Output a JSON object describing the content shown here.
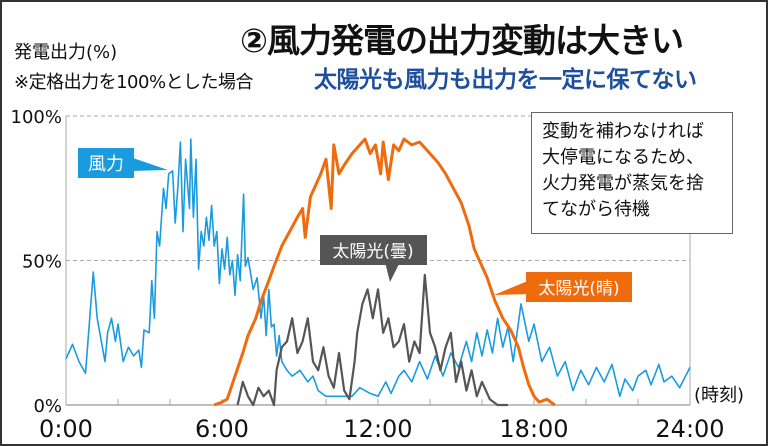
{
  "title": "②風力発電の出力変動は大きい",
  "subtitle": "太陽光も風力も出力を一定に保てない",
  "y_axis_label": "発電出力(%)",
  "y_axis_note": "※定格出力を100%とした場合",
  "note_lines": [
    "変動を補わなければ",
    "大停電になるため、",
    "火力発電が蒸気を捨",
    "てながら待機"
  ],
  "colors": {
    "wind": "#1a9be0",
    "solar_clear": "#ee6c0e",
    "solar_cloudy": "#555555",
    "subtitle": "#1d4f9c"
  },
  "chart_data": {
    "type": "line",
    "title": "②風力発電の出力変動は大きい",
    "xlabel": "(時刻)",
    "ylabel": "発電出力(%)",
    "xlim": [
      0,
      24
    ],
    "ylim": [
      0,
      100
    ],
    "x_ticks": [
      0,
      6,
      12,
      18,
      24
    ],
    "x_tick_labels": [
      "0:00",
      "6:00",
      "12:00",
      "18:00",
      "24:00"
    ],
    "y_ticks": [
      0,
      50,
      100
    ],
    "y_tick_labels": [
      "0%",
      "50%",
      "100%"
    ],
    "grid": "dashed at 50% and 100%",
    "series": [
      {
        "name": "風力",
        "color": "#1a9be0",
        "x": [
          0,
          0.25,
          0.5,
          0.75,
          1.05,
          1.2,
          1.5,
          1.6,
          1.75,
          1.9,
          2.0,
          2.2,
          2.4,
          2.6,
          2.8,
          2.9,
          3.0,
          3.2,
          3.3,
          3.4,
          3.5,
          3.6,
          3.75,
          3.85,
          3.95,
          4.1,
          4.2,
          4.3,
          4.4,
          4.5,
          4.6,
          4.75,
          4.8,
          4.9,
          5.0,
          5.1,
          5.2,
          5.3,
          5.4,
          5.5,
          5.6,
          5.7,
          5.8,
          5.9,
          6.0,
          6.1,
          6.2,
          6.3,
          6.4,
          6.5,
          6.6,
          6.7,
          6.83,
          6.9,
          7.0,
          7.2,
          7.35,
          7.5,
          7.6,
          7.7,
          7.8,
          7.9,
          8.0,
          8.1,
          8.2,
          8.3,
          8.5,
          8.7,
          9.0,
          9.3,
          9.5,
          9.7,
          10,
          10.5,
          11,
          11.3,
          11.7,
          12,
          12.3,
          12.5,
          12.8,
          13,
          13.3,
          13.6,
          13.9,
          14.2,
          14.5,
          14.8,
          15.1,
          15.4,
          15.6,
          15.8,
          16.0,
          16.2,
          16.4,
          16.6,
          16.8,
          17.0,
          17.2,
          17.5,
          17.8,
          18.0,
          18.3,
          18.6,
          18.9,
          19.2,
          19.5,
          19.8,
          20.1,
          20.4,
          20.7,
          21,
          21.3,
          21.5,
          21.8,
          22,
          22.3,
          22.5,
          22.8,
          23,
          23.3,
          23.6,
          24
        ],
        "values": [
          16,
          21,
          15,
          11,
          46,
          30,
          15,
          25,
          30,
          22,
          28,
          15,
          20,
          17,
          19,
          13,
          26,
          25,
          43,
          30,
          60,
          55,
          75,
          68,
          80,
          81,
          63,
          75,
          91,
          60,
          85,
          68,
          92,
          65,
          85,
          47,
          60,
          55,
          65,
          57,
          69,
          55,
          60,
          42,
          54,
          47,
          58,
          45,
          50,
          38,
          52,
          43,
          73,
          48,
          51,
          40,
          44,
          30,
          38,
          24,
          40,
          27,
          28,
          17,
          24,
          15,
          12,
          10,
          12,
          8,
          10,
          5,
          3,
          3,
          3,
          6,
          4,
          3,
          8,
          4,
          10,
          12,
          8,
          15,
          9,
          17,
          10,
          18,
          13,
          22,
          15,
          25,
          17,
          26,
          18,
          30,
          20,
          27,
          15,
          35,
          22,
          28,
          15,
          20,
          10,
          15,
          5,
          12,
          7,
          13,
          8,
          14,
          3,
          9,
          5,
          10,
          12,
          7,
          14,
          8,
          10,
          6,
          13
        ]
      },
      {
        "name": "太陽光(晴)",
        "color": "#ee6c0e",
        "x": [
          5.7,
          6.0,
          6.2,
          6.5,
          6.8,
          7.0,
          7.3,
          7.5,
          7.8,
          8.0,
          8.3,
          8.6,
          8.9,
          9.1,
          9.2,
          9.4,
          9.6,
          9.8,
          10.0,
          10.2,
          10.3,
          10.5,
          10.7,
          11.0,
          11.3,
          11.5,
          11.7,
          11.9,
          12.1,
          12.2,
          12.4,
          12.6,
          12.8,
          13.0,
          13.3,
          13.6,
          14.0,
          14.3,
          14.6,
          14.9,
          15.2,
          15.5,
          15.7,
          15.9,
          16.2,
          16.5,
          16.8,
          17.1,
          17.4,
          17.6,
          17.8,
          18.0,
          18.2,
          18.5,
          18.8
        ],
        "values": [
          0,
          1,
          2,
          10,
          18,
          24,
          30,
          36,
          43,
          48,
          55,
          60,
          65,
          68,
          58,
          72,
          76,
          80,
          85,
          68,
          90,
          80,
          83,
          87,
          90,
          92,
          87,
          90,
          80,
          91,
          78,
          90,
          88,
          92,
          90,
          91,
          87,
          84,
          80,
          75,
          70,
          62,
          54,
          50,
          44,
          36,
          30,
          26,
          20,
          13,
          7,
          3,
          1,
          2,
          0
        ]
      },
      {
        "name": "太陽光(曇)",
        "color": "#555555",
        "x": [
          6.6,
          6.8,
          7.0,
          7.2,
          7.4,
          7.6,
          7.8,
          8.0,
          8.1,
          8.3,
          8.5,
          8.7,
          8.9,
          9.1,
          9.3,
          9.5,
          9.7,
          9.9,
          10.1,
          10.3,
          10.5,
          10.7,
          10.9,
          11.1,
          11.2,
          11.4,
          11.6,
          11.8,
          12.0,
          12.2,
          12.4,
          12.6,
          12.8,
          13.0,
          13.2,
          13.4,
          13.6,
          13.8,
          14.0,
          14.2,
          14.4,
          14.6,
          14.8,
          15.0,
          15.2,
          15.4,
          15.6,
          15.8,
          16.0,
          16.3,
          16.6,
          17.0
        ],
        "values": [
          0,
          8,
          3,
          0,
          6,
          3,
          5,
          0,
          12,
          20,
          22,
          30,
          18,
          22,
          30,
          15,
          12,
          20,
          10,
          6,
          18,
          5,
          2,
          15,
          25,
          35,
          40,
          30,
          40,
          25,
          30,
          20,
          22,
          28,
          15,
          22,
          18,
          45,
          25,
          20,
          12,
          20,
          25,
          8,
          15,
          5,
          12,
          3,
          8,
          2,
          0,
          0
        ]
      }
    ],
    "labels": {
      "wind": "風力",
      "solar_cloudy": "太陽光(曇)",
      "solar_clear": "太陽光(晴)"
    }
  }
}
